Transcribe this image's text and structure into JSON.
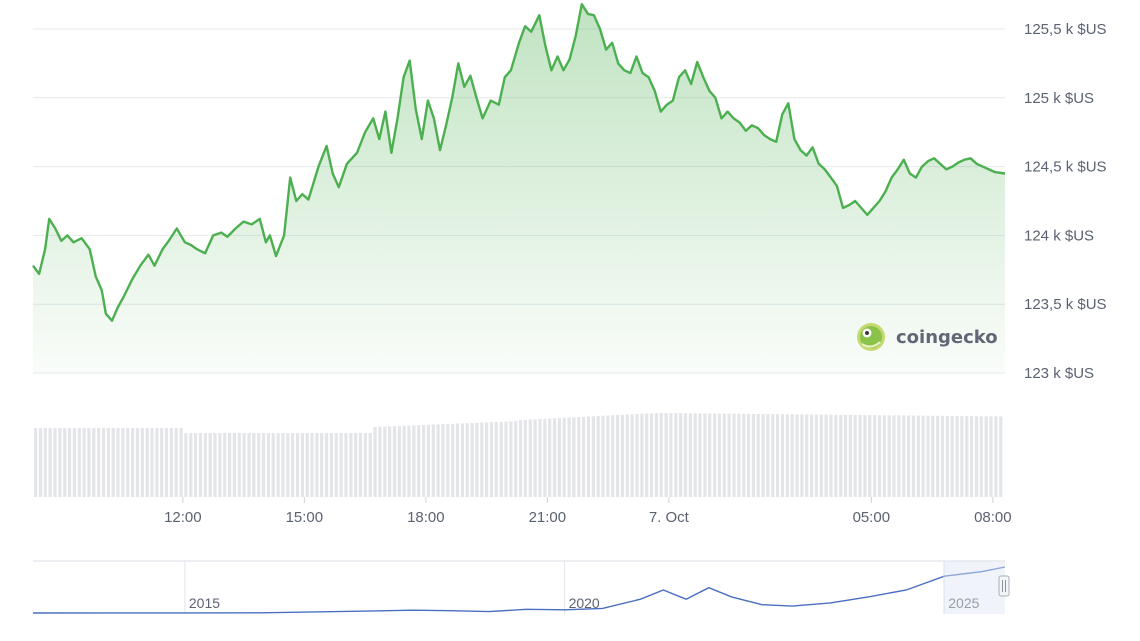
{
  "chart_data": [
    {
      "type": "area",
      "ylim": [
        123000,
        125650
      ],
      "y_tick_values": [
        123000,
        123500,
        124000,
        124500,
        125000,
        125500
      ],
      "y_tick_labels": [
        "123 k $US",
        "123,5 k $US",
        "124 k $US",
        "124,5 k $US",
        "125 k $US",
        "125,5 k $US"
      ],
      "x_ticks": [
        {
          "label": "12:00",
          "hour": 12
        },
        {
          "label": "15:00",
          "hour": 15
        },
        {
          "label": "18:00",
          "hour": 18
        },
        {
          "label": "21:00",
          "hour": 21
        },
        {
          "label": "7. Oct",
          "hour": 24
        },
        {
          "label": "05:00",
          "hour": 29
        },
        {
          "label": "08:00",
          "hour": 32
        }
      ],
      "x_range_hours": [
        8.3,
        32.3
      ],
      "series": [
        {
          "color": "#4caf50",
          "points": [
            [
              8.3,
              123780
            ],
            [
              8.45,
              123720
            ],
            [
              8.6,
              123900
            ],
            [
              8.7,
              124120
            ],
            [
              8.85,
              124050
            ],
            [
              9.0,
              123960
            ],
            [
              9.15,
              124000
            ],
            [
              9.3,
              123950
            ],
            [
              9.5,
              123980
            ],
            [
              9.7,
              123900
            ],
            [
              9.85,
              123700
            ],
            [
              10.0,
              123600
            ],
            [
              10.1,
              123430
            ],
            [
              10.25,
              123380
            ],
            [
              10.4,
              123480
            ],
            [
              10.55,
              123560
            ],
            [
              10.75,
              123680
            ],
            [
              10.95,
              123780
            ],
            [
              11.15,
              123860
            ],
            [
              11.3,
              123780
            ],
            [
              11.5,
              123900
            ],
            [
              11.65,
              123960
            ],
            [
              11.85,
              124050
            ],
            [
              12.05,
              123950
            ],
            [
              12.2,
              123930
            ],
            [
              12.35,
              123900
            ],
            [
              12.55,
              123870
            ],
            [
              12.75,
              124000
            ],
            [
              12.95,
              124020
            ],
            [
              13.1,
              123990
            ],
            [
              13.3,
              124050
            ],
            [
              13.5,
              124100
            ],
            [
              13.7,
              124080
            ],
            [
              13.9,
              124120
            ],
            [
              14.05,
              123950
            ],
            [
              14.15,
              124000
            ],
            [
              14.3,
              123850
            ],
            [
              14.5,
              124000
            ],
            [
              14.65,
              124420
            ],
            [
              14.8,
              124250
            ],
            [
              14.95,
              124300
            ],
            [
              15.1,
              124260
            ],
            [
              15.35,
              124500
            ],
            [
              15.55,
              124650
            ],
            [
              15.7,
              124450
            ],
            [
              15.85,
              124350
            ],
            [
              16.05,
              124520
            ],
            [
              16.3,
              124600
            ],
            [
              16.5,
              124750
            ],
            [
              16.7,
              124850
            ],
            [
              16.85,
              124700
            ],
            [
              17.0,
              124900
            ],
            [
              17.15,
              124600
            ],
            [
              17.3,
              124850
            ],
            [
              17.45,
              125150
            ],
            [
              17.6,
              125270
            ],
            [
              17.75,
              124920
            ],
            [
              17.9,
              124700
            ],
            [
              18.05,
              124980
            ],
            [
              18.2,
              124850
            ],
            [
              18.35,
              124620
            ],
            [
              18.5,
              124800
            ],
            [
              18.65,
              125000
            ],
            [
              18.8,
              125250
            ],
            [
              18.95,
              125080
            ],
            [
              19.1,
              125160
            ],
            [
              19.25,
              125000
            ],
            [
              19.4,
              124850
            ],
            [
              19.6,
              124980
            ],
            [
              19.8,
              124950
            ],
            [
              19.95,
              125150
            ],
            [
              20.1,
              125200
            ],
            [
              20.3,
              125400
            ],
            [
              20.45,
              125520
            ],
            [
              20.6,
              125480
            ],
            [
              20.8,
              125600
            ],
            [
              20.95,
              125380
            ],
            [
              21.1,
              125200
            ],
            [
              21.25,
              125300
            ],
            [
              21.4,
              125200
            ],
            [
              21.55,
              125280
            ],
            [
              21.7,
              125450
            ],
            [
              21.85,
              125680
            ],
            [
              22.0,
              125610
            ],
            [
              22.15,
              125600
            ],
            [
              22.3,
              125500
            ],
            [
              22.45,
              125350
            ],
            [
              22.6,
              125400
            ],
            [
              22.75,
              125250
            ],
            [
              22.9,
              125200
            ],
            [
              23.05,
              125180
            ],
            [
              23.2,
              125300
            ],
            [
              23.35,
              125180
            ],
            [
              23.5,
              125150
            ],
            [
              23.65,
              125050
            ],
            [
              23.8,
              124900
            ],
            [
              23.95,
              124950
            ],
            [
              24.1,
              124980
            ],
            [
              24.25,
              125150
            ],
            [
              24.4,
              125200
            ],
            [
              24.55,
              125100
            ],
            [
              24.7,
              125260
            ],
            [
              24.85,
              125150
            ],
            [
              25.0,
              125050
            ],
            [
              25.15,
              125000
            ],
            [
              25.3,
              124850
            ],
            [
              25.45,
              124900
            ],
            [
              25.6,
              124850
            ],
            [
              25.75,
              124820
            ],
            [
              25.9,
              124760
            ],
            [
              26.05,
              124800
            ],
            [
              26.2,
              124780
            ],
            [
              26.35,
              124730
            ],
            [
              26.5,
              124700
            ],
            [
              26.65,
              124680
            ],
            [
              26.8,
              124880
            ],
            [
              26.95,
              124960
            ],
            [
              27.1,
              124700
            ],
            [
              27.25,
              124620
            ],
            [
              27.4,
              124580
            ],
            [
              27.55,
              124640
            ],
            [
              27.7,
              124520
            ],
            [
              27.85,
              124480
            ],
            [
              28.0,
              124420
            ],
            [
              28.15,
              124360
            ],
            [
              28.3,
              124200
            ],
            [
              28.45,
              124220
            ],
            [
              28.6,
              124250
            ],
            [
              28.75,
              124200
            ],
            [
              28.9,
              124150
            ],
            [
              29.05,
              124200
            ],
            [
              29.2,
              124250
            ],
            [
              29.35,
              124320
            ],
            [
              29.5,
              124420
            ],
            [
              29.65,
              124480
            ],
            [
              29.8,
              124550
            ],
            [
              29.95,
              124450
            ],
            [
              30.1,
              124420
            ],
            [
              30.25,
              124500
            ],
            [
              30.4,
              124540
            ],
            [
              30.55,
              124560
            ],
            [
              30.7,
              124520
            ],
            [
              30.85,
              124480
            ],
            [
              31.0,
              124500
            ],
            [
              31.15,
              124530
            ],
            [
              31.3,
              124550
            ],
            [
              31.45,
              124560
            ],
            [
              31.6,
              124520
            ],
            [
              31.75,
              124500
            ],
            [
              31.9,
              124480
            ],
            [
              32.05,
              124460
            ],
            [
              32.3,
              124450
            ]
          ]
        }
      ]
    },
    {
      "type": "bar",
      "role": "volume"
    },
    {
      "type": "line",
      "role": "navigator",
      "x_tick_labels": [
        "2015",
        "2020",
        "2025"
      ],
      "series": [
        {
          "color": "#4a6fc1",
          "points": [
            [
              2013.0,
              0.0
            ],
            [
              2014.0,
              0.003
            ],
            [
              2015.0,
              0.002
            ],
            [
              2016.0,
              0.004
            ],
            [
              2017.0,
              0.03
            ],
            [
              2018.0,
              0.06
            ],
            [
              2018.5,
              0.05
            ],
            [
              2019.0,
              0.03
            ],
            [
              2019.5,
              0.08
            ],
            [
              2020.0,
              0.07
            ],
            [
              2020.5,
              0.1
            ],
            [
              2021.0,
              0.3
            ],
            [
              2021.3,
              0.5
            ],
            [
              2021.6,
              0.3
            ],
            [
              2021.9,
              0.55
            ],
            [
              2022.2,
              0.35
            ],
            [
              2022.6,
              0.18
            ],
            [
              2023.0,
              0.15
            ],
            [
              2023.5,
              0.22
            ],
            [
              2024.0,
              0.35
            ],
            [
              2024.5,
              0.5
            ],
            [
              2025.0,
              0.8
            ],
            [
              2025.5,
              0.9
            ],
            [
              2025.8,
              1.0
            ]
          ]
        }
      ]
    }
  ],
  "watermark": {
    "brand": "coingecko",
    "icon": "gecko-logo-icon"
  },
  "navigator": {
    "handle_icon": "drag-handle-icon"
  }
}
